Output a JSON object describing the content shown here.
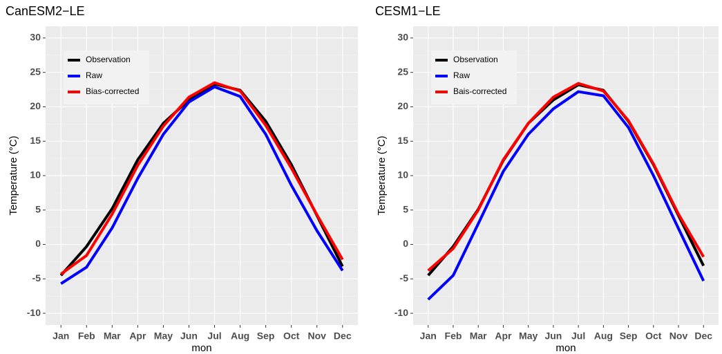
{
  "chart_data": [
    {
      "type": "line",
      "title": "CanESM2−LE",
      "x_label": "mon",
      "y_label": "Temperature (°C)",
      "categories": [
        "Jan",
        "Feb",
        "Mar",
        "Apr",
        "May",
        "Jun",
        "Jul",
        "Aug",
        "Sep",
        "Oct",
        "Nov",
        "Dec"
      ],
      "series": [
        {
          "name": "Observation",
          "color": "#000000",
          "values": [
            -4.5,
            -0.3,
            5.2,
            12.3,
            17.6,
            21.0,
            23.3,
            22.4,
            17.9,
            11.6,
            4.2,
            -3.2
          ]
        },
        {
          "name": "Raw",
          "color": "#0000ff",
          "values": [
            -5.7,
            -3.3,
            2.4,
            9.6,
            16.0,
            20.7,
            22.9,
            21.5,
            16.0,
            8.6,
            2.0,
            -3.8
          ]
        },
        {
          "name": "Bias-corrected",
          "color": "#ff0000",
          "values": [
            -4.3,
            -1.6,
            4.4,
            11.5,
            17.2,
            21.4,
            23.5,
            22.3,
            17.3,
            11.1,
            4.3,
            -2.2
          ]
        }
      ],
      "ylim": [
        -11.7,
        31.7
      ],
      "yticks": [
        -10,
        -5,
        0,
        5,
        10,
        15,
        20,
        25,
        30
      ],
      "grid": true,
      "legend": "top-left"
    },
    {
      "type": "line",
      "title": "CESM1−LE",
      "x_label": "mon",
      "y_label": "Temperature (°C)",
      "categories": [
        "Jan",
        "Feb",
        "Mar",
        "Apr",
        "May",
        "Jun",
        "Jul",
        "Aug",
        "Sep",
        "Oct",
        "Nov",
        "Dec"
      ],
      "series": [
        {
          "name": "Observation",
          "color": "#000000",
          "values": [
            -4.5,
            -0.3,
            5.1,
            12.2,
            17.6,
            21.0,
            23.2,
            22.4,
            17.9,
            11.6,
            4.2,
            -3.1
          ]
        },
        {
          "name": "Raw",
          "color": "#0000ff",
          "values": [
            -8.0,
            -4.5,
            3.0,
            10.6,
            16.0,
            19.7,
            22.2,
            21.6,
            17.0,
            10.0,
            2.3,
            -5.3
          ]
        },
        {
          "name": "Bais-corrected",
          "color": "#ff0000",
          "values": [
            -3.8,
            -0.6,
            5.0,
            12.3,
            17.6,
            21.4,
            23.4,
            22.3,
            18.0,
            11.7,
            4.4,
            -1.8
          ]
        }
      ],
      "ylim": [
        -11.7,
        31.7
      ],
      "yticks": [
        -10,
        -5,
        0,
        5,
        10,
        15,
        20,
        25,
        30
      ],
      "grid": true,
      "legend": "top-left"
    }
  ]
}
